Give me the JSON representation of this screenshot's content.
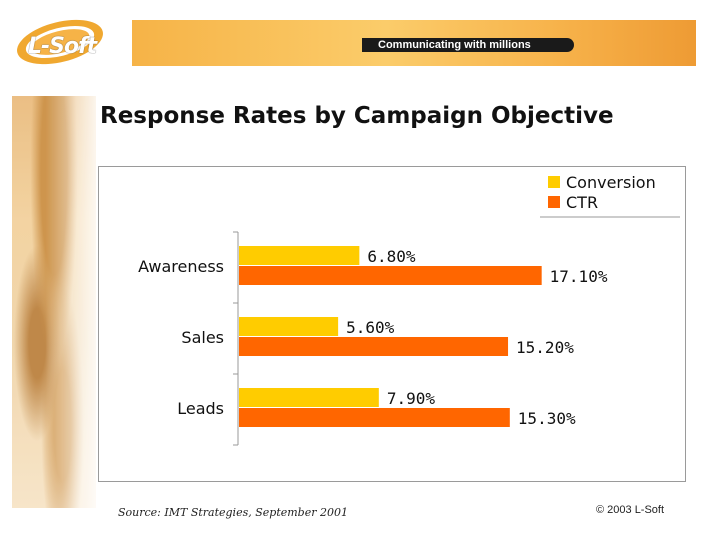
{
  "header": {
    "logo_text": "L-Soft",
    "tagline": "Communicating with millions"
  },
  "slide": {
    "title": "Response Rates by Campaign Objective",
    "source": "Source: IMT Strategies, September 2001",
    "copyright": "© 2003 L-Soft"
  },
  "colors": {
    "conversion": "#ffcc00",
    "ctr": "#ff6600",
    "axis": "#999999"
  },
  "chart_data": {
    "type": "bar",
    "orientation": "horizontal",
    "categories": [
      "Awareness",
      "Sales",
      "Leads"
    ],
    "series": [
      {
        "name": "Conversion",
        "values": [
          6.8,
          5.6,
          7.9
        ],
        "labels": [
          "6.80%",
          "5.60%",
          "7.90%"
        ]
      },
      {
        "name": "CTR",
        "values": [
          17.1,
          15.2,
          15.3
        ],
        "labels": [
          "17.10%",
          "15.20%",
          "15.30%"
        ]
      }
    ],
    "xlim": [
      0,
      20
    ],
    "legend": "top-right",
    "grid": false
  }
}
